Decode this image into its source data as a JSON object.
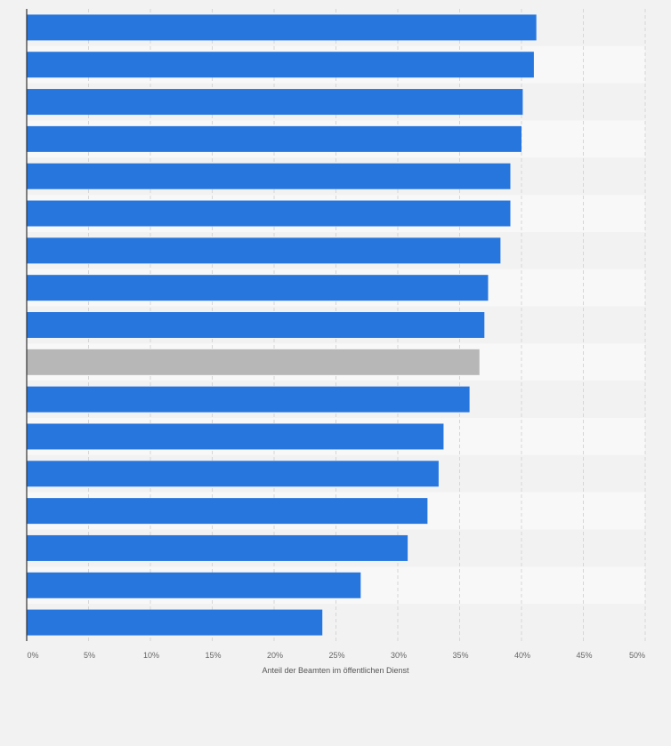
{
  "chart_data": {
    "type": "bar",
    "orientation": "horizontal",
    "xlabel": "Anteil der Beamten im öffentlichen Dienst",
    "ylabel": "",
    "xlim": [
      0,
      50
    ],
    "tick_values": [
      0,
      5,
      10,
      15,
      20,
      25,
      30,
      35,
      40,
      45,
      50
    ],
    "tick_labels": [
      "0%",
      "5%",
      "10%",
      "15%",
      "20%",
      "25%",
      "30%",
      "35%",
      "40%",
      "45%",
      "50%"
    ],
    "values": [
      41.2,
      41.0,
      40.1,
      40.0,
      39.1,
      39.1,
      38.3,
      37.3,
      37.0,
      36.6,
      35.8,
      33.7,
      33.3,
      32.4,
      30.8,
      27.0,
      23.9
    ],
    "highlight_index": 9,
    "bar_color": "#2776de",
    "highlight_color": "#b7b7b7",
    "grid": true
  }
}
